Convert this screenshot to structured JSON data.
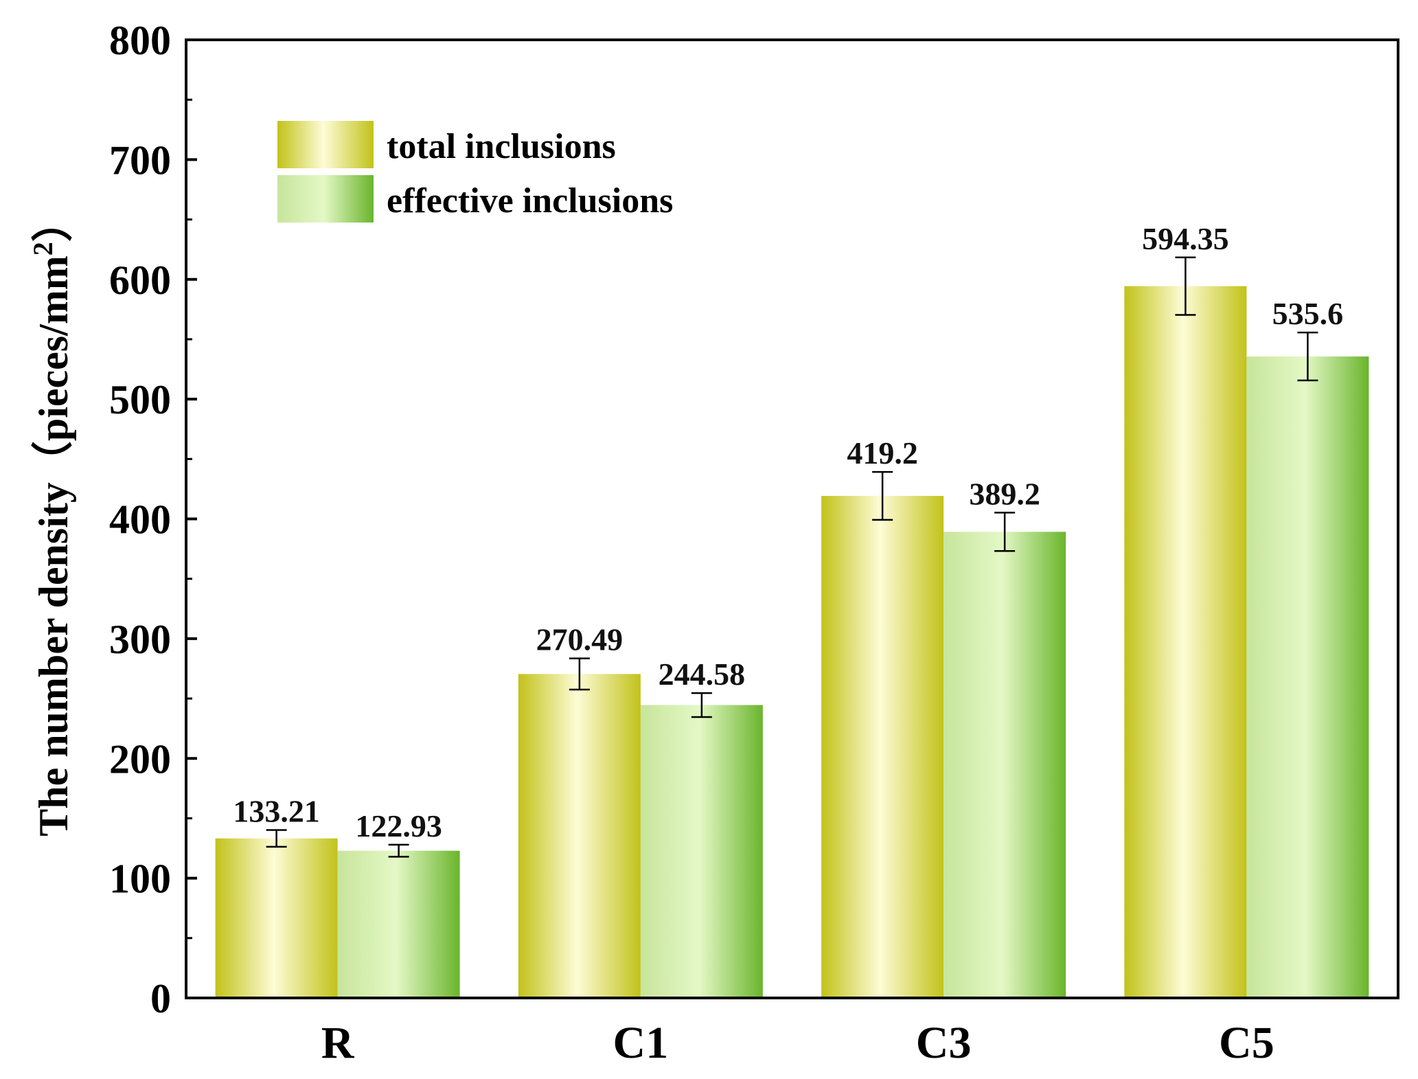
{
  "chart_data": {
    "type": "bar",
    "title": "",
    "xlabel": "",
    "ylabel": "The number density（pieces/mm",
    "ylabel_superscript": "2",
    "ylabel_close": "）",
    "ylim": [
      0,
      800
    ],
    "yticks": [
      0,
      100,
      200,
      300,
      400,
      500,
      600,
      700,
      800
    ],
    "ytick_labels": [
      "0",
      "100",
      "200",
      "300",
      "400",
      "500",
      "600",
      "700",
      "800"
    ],
    "categories": [
      "R",
      "C1",
      "C3",
      "C5"
    ],
    "series": [
      {
        "name": "total inclusions",
        "values": [
          133.21,
          270.49,
          419.2,
          594.35
        ],
        "value_labels": [
          "133.21",
          "270.49",
          "419.2",
          "594.35"
        ],
        "errors": [
          7,
          13,
          20,
          24
        ],
        "color_edge": "#c2c21a",
        "color_center": "#fdfcd6"
      },
      {
        "name": "effective inclusions",
        "values": [
          122.93,
          244.58,
          389.2,
          535.6
        ],
        "value_labels": [
          "122.93",
          "244.58",
          "389.2",
          "535.6"
        ],
        "errors": [
          5,
          10,
          16,
          20
        ],
        "color_edge": "#6ab52c",
        "color_center": "#e4f8c6"
      }
    ],
    "legend_position": "top-left",
    "grid": false
  }
}
